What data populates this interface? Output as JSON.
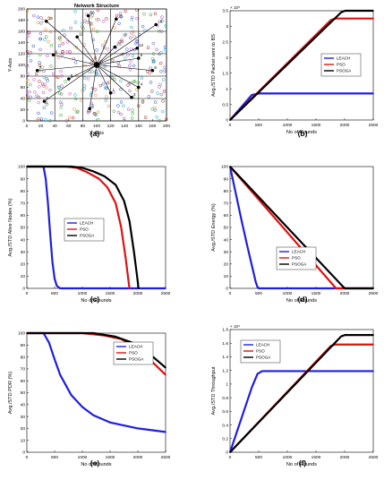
{
  "figure": {
    "panel_labels": [
      "(a)",
      "(b)",
      "(c)",
      "(d)",
      "(e)",
      "(f)"
    ]
  },
  "colors": {
    "leach": "#1f1fe0",
    "pso": "#e01010",
    "psoga": "#000000",
    "grid_line": "#000000",
    "sensor_palette": [
      "#a01020",
      "#2050c0",
      "#20a020",
      "#c040c0",
      "#e08020",
      "#00a0c0",
      "#8040a0"
    ]
  },
  "chart_data": [
    {
      "id": "a",
      "type": "scatter",
      "title": "Network Structure",
      "xlabel": "X-Axis",
      "ylabel": "Y-Axis",
      "xlim": [
        0,
        200
      ],
      "ylim": [
        0,
        200
      ],
      "xticks": [
        0,
        20,
        40,
        60,
        80,
        100,
        120,
        140,
        160,
        180,
        200
      ],
      "yticks": [
        0,
        20,
        40,
        60,
        80,
        100,
        120,
        140,
        160,
        180,
        200
      ],
      "grid_lines": [
        0,
        40,
        80,
        120,
        160,
        200
      ],
      "base_station": [
        100,
        100
      ],
      "cluster_heads": [
        {
          "label": "13",
          "x": 28,
          "y": 178
        },
        {
          "label": "16",
          "x": 88,
          "y": 188
        },
        {
          "label": "15",
          "x": 128,
          "y": 182
        },
        {
          "label": "16",
          "x": 185,
          "y": 172
        },
        {
          "label": "21",
          "x": 126,
          "y": 132
        },
        {
          "label": "12",
          "x": 158,
          "y": 130
        },
        {
          "label": "11",
          "x": 72,
          "y": 150
        },
        {
          "label": "9",
          "x": 38,
          "y": 118
        },
        {
          "label": "9",
          "x": 160,
          "y": 112
        },
        {
          "label": "7",
          "x": 15,
          "y": 90
        },
        {
          "label": "8",
          "x": 180,
          "y": 90
        },
        {
          "label": "5",
          "x": 60,
          "y": 75
        },
        {
          "label": "4",
          "x": 160,
          "y": 60
        },
        {
          "label": "3",
          "x": 150,
          "y": 42
        },
        {
          "label": "2",
          "x": 90,
          "y": 22
        },
        {
          "label": "1",
          "x": 120,
          "y": 50
        },
        {
          "label": "6",
          "x": 25,
          "y": 35
        }
      ]
    },
    {
      "id": "b",
      "type": "line",
      "xlabel": "No of Rounds",
      "ylabel": "Avg./STD Packet sent to BS",
      "exponent": "× 10⁵",
      "xlim": [
        0,
        2500
      ],
      "ylim": [
        0,
        3.5
      ],
      "xticks": [
        0,
        500,
        1000,
        1500,
        2000,
        2500
      ],
      "yticks": [
        0,
        0.5,
        1,
        1.5,
        2,
        2.5,
        3,
        3.5
      ],
      "legend": "center-right",
      "series": [
        {
          "name": "LEACH",
          "color": "#1f1fe0",
          "x": [
            0,
            380,
            500,
            2500
          ],
          "y": [
            0,
            0.8,
            0.85,
            0.85
          ]
        },
        {
          "name": "PSO",
          "color": "#e01010",
          "x": [
            0,
            1760,
            1840,
            2500
          ],
          "y": [
            0,
            3.2,
            3.25,
            3.25
          ]
        },
        {
          "name": "PSOGA",
          "color": "#000000",
          "x": [
            0,
            1940,
            2010,
            2500
          ],
          "y": [
            0,
            3.45,
            3.5,
            3.5
          ]
        }
      ]
    },
    {
      "id": "c",
      "type": "line",
      "xlabel": "No of Rounds",
      "ylabel": "Avg./STD Alive Nodes (%)",
      "xlim": [
        0,
        2500
      ],
      "ylim": [
        0,
        100
      ],
      "xticks": [
        0,
        500,
        1000,
        1500,
        2000,
        2500
      ],
      "yticks": [
        0,
        10,
        20,
        30,
        40,
        50,
        60,
        70,
        80,
        90,
        100
      ],
      "legend": "center-left",
      "series": [
        {
          "name": "LEACH",
          "color": "#1f1fe0",
          "x": [
            0,
            300,
            340,
            380,
            420,
            460,
            500,
            540,
            600,
            2500
          ],
          "y": [
            100,
            100,
            90,
            70,
            45,
            22,
            8,
            2,
            0,
            0
          ]
        },
        {
          "name": "PSO",
          "color": "#e01010",
          "x": [
            0,
            700,
            900,
            1100,
            1300,
            1450,
            1600,
            1700,
            1780,
            1840,
            1850
          ],
          "y": [
            100,
            100,
            99,
            95,
            90,
            83,
            70,
            50,
            25,
            3,
            0
          ]
        },
        {
          "name": "PSOGA",
          "color": "#000000",
          "x": [
            0,
            800,
            1000,
            1200,
            1400,
            1600,
            1750,
            1850,
            1930,
            2000,
            2010
          ],
          "y": [
            100,
            100,
            99,
            96,
            92,
            85,
            72,
            55,
            30,
            5,
            0
          ]
        }
      ]
    },
    {
      "id": "d",
      "type": "line",
      "xlabel": "No of Rounds",
      "ylabel": "Avg./STD Energy (%)",
      "xlim": [
        0,
        2500
      ],
      "ylim": [
        0,
        100
      ],
      "xticks": [
        0,
        500,
        1000,
        1500,
        2000,
        2500
      ],
      "yticks": [
        0,
        10,
        20,
        30,
        40,
        50,
        60,
        70,
        80,
        90,
        100
      ],
      "legend": "lower-left",
      "series": [
        {
          "name": "LEACH",
          "color": "#1f1fe0",
          "x": [
            0,
            100,
            200,
            300,
            400,
            450,
            480,
            500,
            2500
          ],
          "y": [
            100,
            78,
            56,
            35,
            15,
            5,
            1,
            0,
            0
          ]
        },
        {
          "name": "PSO",
          "color": "#e01010",
          "x": [
            0,
            1850,
            2500
          ],
          "y": [
            100,
            0,
            0
          ]
        },
        {
          "name": "PSOGA",
          "color": "#000000",
          "x": [
            0,
            2000,
            2500
          ],
          "y": [
            100,
            0,
            0
          ]
        }
      ]
    },
    {
      "id": "e",
      "type": "line",
      "xlabel": "No of Rounds",
      "ylabel": "Avg./STD PDR (%)",
      "xlim": [
        0,
        2500
      ],
      "ylim": [
        0,
        100
      ],
      "xticks": [
        0,
        500,
        1000,
        1500,
        2000,
        2500
      ],
      "yticks": [
        0,
        10,
        20,
        30,
        40,
        50,
        60,
        70,
        80,
        90,
        100
      ],
      "legend": "upper-right",
      "series": [
        {
          "name": "LEACH",
          "color": "#1f1fe0",
          "x": [
            0,
            300,
            400,
            500,
            600,
            800,
            1000,
            1200,
            1500,
            2000,
            2500
          ],
          "y": [
            100,
            100,
            92,
            78,
            65,
            48,
            38,
            31,
            25,
            20,
            17
          ]
        },
        {
          "name": "PSO",
          "color": "#e01010",
          "x": [
            0,
            1000,
            1400,
            1700,
            1900,
            2100,
            2300,
            2500
          ],
          "y": [
            100,
            100,
            98,
            95,
            90,
            83,
            74,
            65
          ]
        },
        {
          "name": "PSOGA",
          "color": "#000000",
          "x": [
            0,
            1200,
            1600,
            1900,
            2100,
            2300,
            2500
          ],
          "y": [
            100,
            100,
            97,
            92,
            86,
            79,
            71
          ]
        }
      ]
    },
    {
      "id": "f",
      "type": "line",
      "xlabel": "No of Rounds",
      "ylabel": "Avg./STD Throughput",
      "exponent": "× 10⁴",
      "xlim": [
        0,
        2500
      ],
      "ylim": [
        0,
        1.8
      ],
      "xticks": [
        0,
        500,
        1000,
        1500,
        2000,
        2500
      ],
      "yticks": [
        0,
        0.2,
        0.4,
        0.6,
        0.8,
        1,
        1.2,
        1.4,
        1.6,
        1.8
      ],
      "legend": "upper-left",
      "series": [
        {
          "name": "LEACH",
          "color": "#1f1fe0",
          "x": [
            0,
            380,
            480,
            560,
            2500
          ],
          "y": [
            0,
            0.95,
            1.15,
            1.19,
            1.19
          ]
        },
        {
          "name": "PSO",
          "color": "#e01010",
          "x": [
            0,
            1760,
            1840,
            2500
          ],
          "y": [
            0,
            1.56,
            1.58,
            1.58
          ]
        },
        {
          "name": "PSOGA",
          "color": "#000000",
          "x": [
            0,
            1940,
            2010,
            2500
          ],
          "y": [
            0,
            1.7,
            1.72,
            1.72
          ]
        }
      ]
    }
  ]
}
